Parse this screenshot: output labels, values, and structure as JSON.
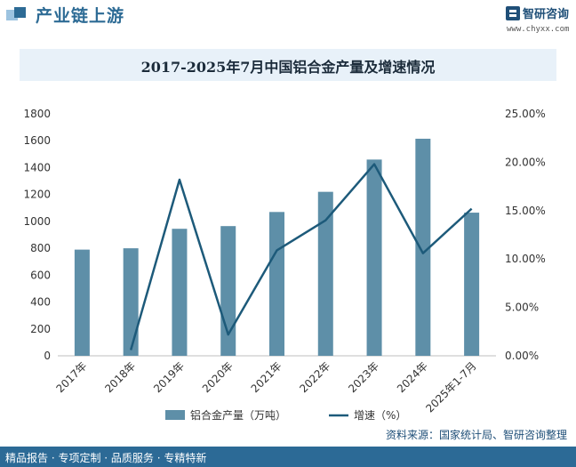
{
  "header": {
    "title": "产业链上游",
    "brand_name": "智研咨询",
    "brand_url": "www.chyxx.com"
  },
  "chart_data": {
    "type": "bar",
    "title": "2017-2025年7月中国铝合金产量及增速情况",
    "categories": [
      "2017年",
      "2018年",
      "2019年",
      "2020年",
      "2021年",
      "2022年",
      "2023年",
      "2024年",
      "2025年1-7月"
    ],
    "series": [
      {
        "name": "铝合金产量（万吨）",
        "type": "bar",
        "axis": "left",
        "color": "#5e8fa8",
        "values": [
          790,
          800,
          945,
          965,
          1070,
          1220,
          1460,
          1615,
          1065
        ]
      },
      {
        "name": "增速（%）",
        "type": "line",
        "axis": "right",
        "color": "#1d5a7a",
        "values": [
          null,
          0.6,
          18.2,
          2.2,
          10.9,
          14.0,
          19.8,
          10.6,
          15.2
        ]
      }
    ],
    "y_left": {
      "min": 0,
      "max": 1800,
      "step": 200,
      "ticks": [
        "0",
        "200",
        "400",
        "600",
        "800",
        "1000",
        "1200",
        "1400",
        "1600",
        "1800"
      ]
    },
    "y_right": {
      "min": 0,
      "max": 25,
      "step": 5,
      "ticks": [
        "0.00%",
        "5.00%",
        "10.00%",
        "15.00%",
        "20.00%",
        "25.00%"
      ]
    },
    "grid": false,
    "legend_position": "bottom"
  },
  "source": "资料来源：国家统计局、智研咨询整理",
  "footer": {
    "text": "精品报告 · 专项定制 · 品质服务 · 专精特新"
  }
}
